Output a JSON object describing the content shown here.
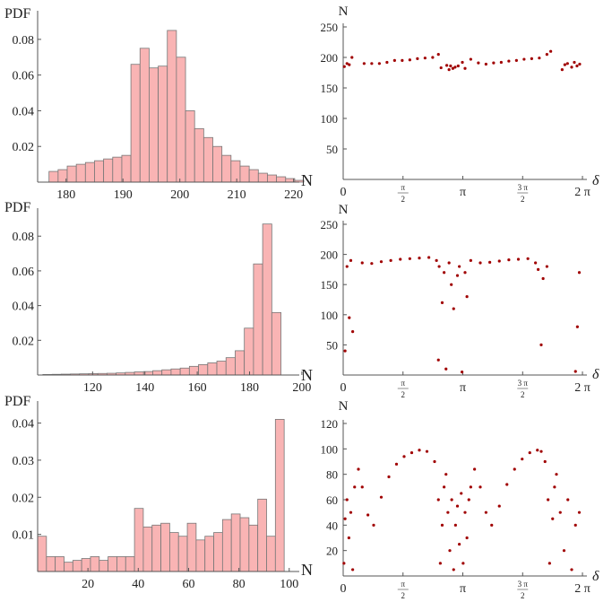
{
  "chart_data": [
    {
      "type": "bar",
      "panel": "histogram-1",
      "ylabel": "PDF",
      "xlabel": "N",
      "xlim": [
        175,
        221
      ],
      "ylim": [
        0,
        0.092
      ],
      "xticks": [
        180,
        190,
        200,
        210,
        220
      ],
      "xtick_labels": [
        "180",
        "190",
        "200",
        "210",
        "220"
      ],
      "yticks": [
        0.02,
        0.04,
        0.06,
        0.08
      ],
      "ytick_labels": [
        "0.02",
        "0.04",
        "0.06",
        "0.08"
      ],
      "bin_start": 177,
      "bin_width": 1.6,
      "values": [
        0.006,
        0.007,
        0.009,
        0.01,
        0.011,
        0.012,
        0.013,
        0.014,
        0.015,
        0.066,
        0.075,
        0.064,
        0.065,
        0.085,
        0.07,
        0.04,
        0.03,
        0.025,
        0.02,
        0.015,
        0.012,
        0.009,
        0.007,
        0.005,
        0.004,
        0.003,
        0.002,
        0.001
      ],
      "bar_color": "#f9b4b4",
      "edge_color": "#777777"
    },
    {
      "type": "scatter",
      "panel": "scatter-1",
      "ylabel": "N",
      "xlabel": "δ",
      "xlim": [
        0,
        6.4
      ],
      "ylim": [
        0,
        250
      ],
      "yticks": [
        50,
        100,
        150,
        200,
        250
      ],
      "ytick_labels": [
        "50",
        "100",
        "150",
        "200",
        "250"
      ],
      "xtick_labels": [
        "0",
        "π/2",
        "π",
        "3 π/2",
        "2 π"
      ],
      "x": [
        0.03,
        0.1,
        0.16,
        0.23,
        0.55,
        0.75,
        0.95,
        1.15,
        1.35,
        1.55,
        1.75,
        1.95,
        2.15,
        2.35,
        2.5,
        2.57,
        2.72,
        2.78,
        2.82,
        2.88,
        2.94,
        3.02,
        3.13,
        3.2,
        3.35,
        3.55,
        3.75,
        3.95,
        4.15,
        4.35,
        4.55,
        4.75,
        4.95,
        5.15,
        5.35,
        5.45,
        5.75,
        5.82,
        5.89,
        6.0,
        6.07,
        6.14,
        6.21
      ],
      "y": [
        185,
        190,
        188,
        200,
        190,
        190,
        190,
        192,
        195,
        195,
        196,
        198,
        199,
        200,
        205,
        183,
        187,
        180,
        186,
        182,
        184,
        186,
        192,
        182,
        197,
        191,
        189,
        191,
        192,
        194,
        195,
        197,
        198,
        199,
        205,
        210,
        180,
        188,
        190,
        184,
        192,
        186,
        189
      ],
      "point_color": "#a00000"
    },
    {
      "type": "bar",
      "panel": "histogram-2",
      "ylabel": "PDF",
      "xlabel": "N",
      "xlim": [
        99,
        199
      ],
      "ylim": [
        0,
        0.092
      ],
      "xticks": [
        120,
        140,
        160,
        180,
        200
      ],
      "xtick_labels": [
        "120",
        "140",
        "160",
        "180",
        "200"
      ],
      "yticks": [
        0.02,
        0.04,
        0.06,
        0.08
      ],
      "ytick_labels": [
        "0.02",
        "0.04",
        "0.06",
        "0.08"
      ],
      "bin_start": 101,
      "bin_width": 3.5,
      "values": [
        0.0003,
        0.0004,
        0.0005,
        0.0006,
        0.0007,
        0.0008,
        0.0009,
        0.001,
        0.0012,
        0.0015,
        0.0018,
        0.002,
        0.0025,
        0.003,
        0.0035,
        0.004,
        0.005,
        0.006,
        0.007,
        0.008,
        0.01,
        0.014,
        0.027,
        0.064,
        0.087,
        0.036
      ],
      "bar_color": "#f9b4b4",
      "edge_color": "#777777"
    },
    {
      "type": "scatter",
      "panel": "scatter-2",
      "ylabel": "N",
      "xlabel": "δ",
      "xlim": [
        0,
        6.4
      ],
      "ylim": [
        0,
        250
      ],
      "yticks": [
        50,
        100,
        150,
        200,
        250
      ],
      "ytick_labels": [
        "50",
        "100",
        "150",
        "200",
        "250"
      ],
      "xtick_labels": [
        "0",
        "π/2",
        "π",
        "3 π/2",
        "2 π"
      ],
      "x": [
        0.05,
        0.1,
        0.16,
        0.2,
        0.25,
        0.5,
        0.75,
        1.0,
        1.25,
        1.5,
        1.75,
        2.0,
        2.25,
        2.45,
        2.5,
        2.52,
        2.6,
        2.65,
        2.7,
        2.78,
        2.84,
        2.9,
        3.0,
        3.05,
        3.12,
        3.2,
        3.25,
        3.35,
        3.6,
        3.85,
        4.1,
        4.35,
        4.6,
        4.85,
        5.05,
        5.12,
        5.2,
        5.25,
        5.35,
        6.1,
        6.15,
        6.2
      ],
      "y": [
        40,
        180,
        95,
        190,
        72,
        186,
        185,
        188,
        190,
        192,
        193,
        194,
        195,
        190,
        25,
        180,
        120,
        170,
        10,
        186,
        150,
        110,
        165,
        180,
        5,
        170,
        130,
        190,
        186,
        187,
        189,
        191,
        192,
        193,
        186,
        175,
        50,
        160,
        180,
        6,
        80,
        170
      ],
      "point_color": "#a00000"
    },
    {
      "type": "bar",
      "panel": "histogram-3",
      "ylabel": "PDF",
      "xlabel": "N",
      "xlim": [
        0,
        104
      ],
      "ylim": [
        0,
        0.044
      ],
      "xticks": [
        20,
        40,
        60,
        80,
        100
      ],
      "xtick_labels": [
        "20",
        "40",
        "60",
        "80",
        "100"
      ],
      "yticks": [
        0.01,
        0.02,
        0.03,
        0.04
      ],
      "ytick_labels": [
        "0.01",
        "0.02",
        "0.03",
        "0.04"
      ],
      "bin_start": 0,
      "bin_width": 3.5,
      "values": [
        0.0095,
        0.004,
        0.004,
        0.0025,
        0.003,
        0.0035,
        0.004,
        0.003,
        0.004,
        0.004,
        0.004,
        0.017,
        0.012,
        0.0125,
        0.013,
        0.0105,
        0.0095,
        0.013,
        0.0085,
        0.0095,
        0.0105,
        0.014,
        0.0155,
        0.0145,
        0.0125,
        0.0195,
        0.0095,
        0.041
      ],
      "bar_color": "#f9b4b4",
      "edge_color": "#777777"
    },
    {
      "type": "scatter",
      "panel": "scatter-3",
      "ylabel": "N",
      "xlabel": "δ",
      "xlim": [
        0,
        6.4
      ],
      "ylim": [
        0,
        120
      ],
      "yticks": [
        20,
        40,
        60,
        80,
        100,
        120
      ],
      "ytick_labels": [
        "20",
        "40",
        "60",
        "80",
        "100",
        "120"
      ],
      "xtick_labels": [
        "0",
        "π/2",
        "π",
        "3 π/2",
        "2 π"
      ],
      "x": [
        0.02,
        0.05,
        0.1,
        0.15,
        0.2,
        0.25,
        0.3,
        0.4,
        0.5,
        0.65,
        0.8,
        1.0,
        1.2,
        1.4,
        1.6,
        1.8,
        2.0,
        2.2,
        2.4,
        2.5,
        2.55,
        2.6,
        2.65,
        2.7,
        2.75,
        2.8,
        2.85,
        2.9,
        2.95,
        3.0,
        3.05,
        3.1,
        3.15,
        3.2,
        3.25,
        3.3,
        3.35,
        3.45,
        3.6,
        3.75,
        3.9,
        4.1,
        4.3,
        4.5,
        4.7,
        4.9,
        5.1,
        5.2,
        5.3,
        5.38,
        5.42,
        5.5,
        5.55,
        5.6,
        5.7,
        5.8,
        5.9,
        6.0,
        6.1,
        6.2
      ],
      "y": [
        10,
        45,
        60,
        30,
        50,
        5,
        70,
        84,
        70,
        48,
        40,
        62,
        78,
        88,
        94,
        97,
        99,
        98,
        90,
        60,
        10,
        40,
        70,
        80,
        50,
        20,
        60,
        5,
        40,
        55,
        25,
        65,
        10,
        50,
        30,
        60,
        70,
        84,
        70,
        50,
        40,
        55,
        72,
        84,
        92,
        97,
        99,
        98,
        90,
        60,
        10,
        45,
        70,
        80,
        50,
        20,
        60,
        5,
        40,
        50
      ],
      "point_color": "#a00000"
    }
  ]
}
